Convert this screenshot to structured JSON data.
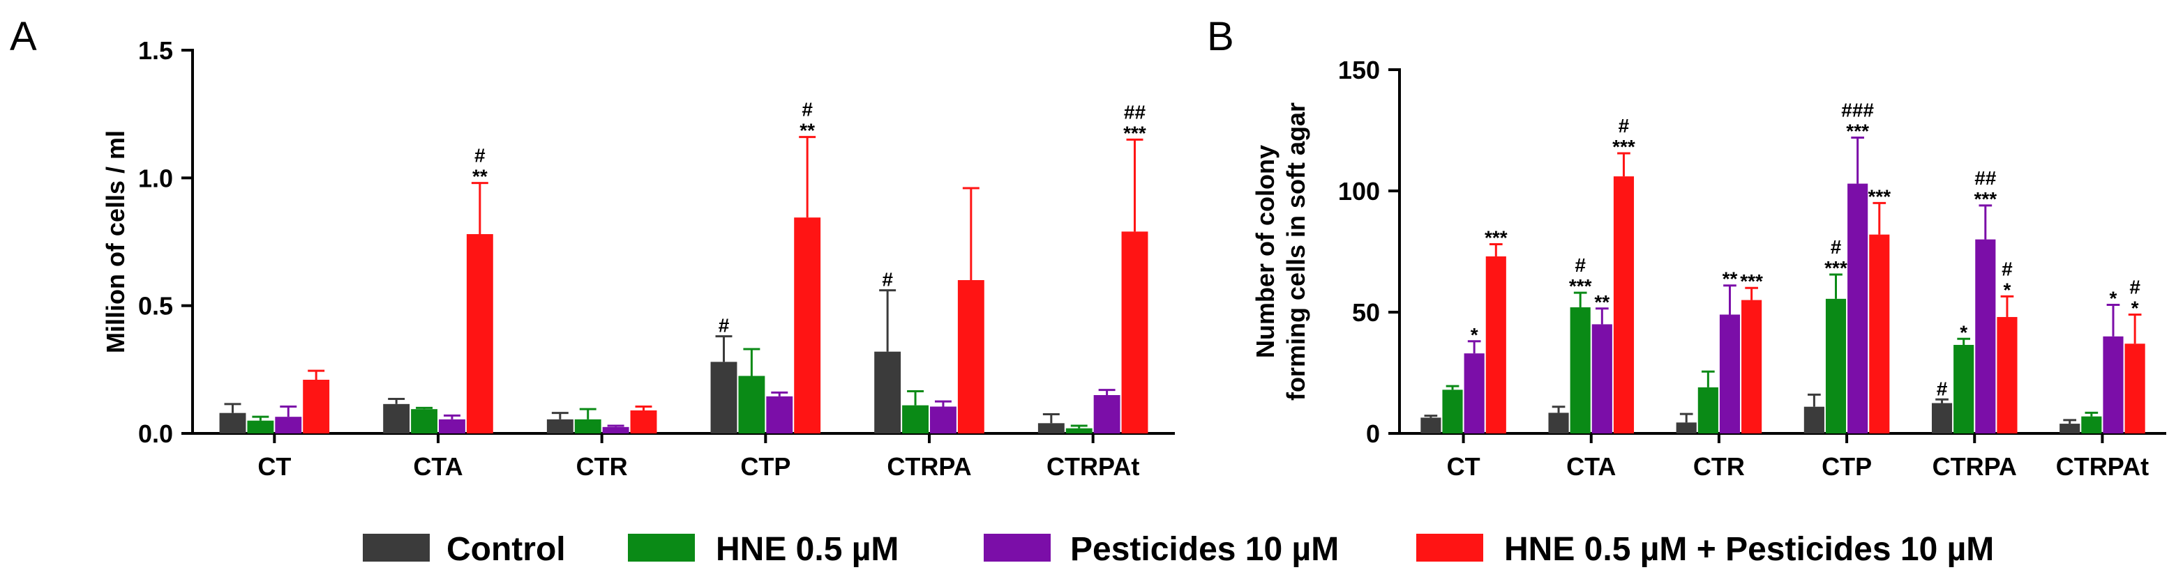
{
  "colors": {
    "Control": "#3b3b3b",
    "HNE 0.5 µM": "#0a8a16",
    "Pesticides 10 µM": "#7b0ea8",
    "HNE 0.5 µM + Pesticides 10 µM": "#ff1414"
  },
  "legend": {
    "items": [
      {
        "label": "Control",
        "color": "#3b3b3b"
      },
      {
        "label": "HNE 0.5 µM",
        "color": "#0a8a16"
      },
      {
        "label": "Pesticides 10 µM",
        "color": "#7b0ea8"
      },
      {
        "label": "HNE 0.5 µM + Pesticides 10 µM",
        "color": "#ff1414"
      }
    ]
  },
  "chart_data": [
    {
      "panel": "A",
      "type": "bar",
      "ylabel": "Million of cells / ml",
      "xlabel": "",
      "ylim": [
        0,
        1.5
      ],
      "yticks": [
        "0.0",
        "0.5",
        "1.0",
        "1.5"
      ],
      "categories": [
        "CT",
        "CTA",
        "CTR",
        "CTP",
        "CTRPA",
        "CTRPAt"
      ],
      "series": [
        {
          "name": "Control",
          "values": [
            0.08,
            0.115,
            0.055,
            0.28,
            0.32,
            0.04
          ],
          "errors": [
            0.035,
            0.02,
            0.025,
            0.1,
            0.24,
            0.035
          ],
          "annotations": [
            [
              "",
              ""
            ],
            [
              "",
              ""
            ],
            [
              "",
              ""
            ],
            [
              "#",
              ""
            ],
            [
              "#",
              ""
            ],
            [
              "",
              ""
            ]
          ]
        },
        {
          "name": "HNE 0.5 µM",
          "values": [
            0.05,
            0.095,
            0.055,
            0.225,
            0.11,
            0.02
          ],
          "errors": [
            0.015,
            0.005,
            0.04,
            0.105,
            0.055,
            0.01
          ],
          "annotations": [
            [
              "",
              ""
            ],
            [
              "",
              ""
            ],
            [
              "",
              ""
            ],
            [
              "",
              ""
            ],
            [
              "",
              ""
            ],
            [
              "",
              ""
            ]
          ]
        },
        {
          "name": "Pesticides 10 µM",
          "values": [
            0.065,
            0.055,
            0.025,
            0.145,
            0.105,
            0.15
          ],
          "errors": [
            0.04,
            0.015,
            0.005,
            0.015,
            0.02,
            0.02
          ],
          "annotations": [
            [
              "",
              ""
            ],
            [
              "",
              ""
            ],
            [
              "",
              ""
            ],
            [
              "",
              ""
            ],
            [
              "",
              ""
            ],
            [
              "",
              ""
            ]
          ]
        },
        {
          "name": "HNE 0.5 µM + Pesticides 10 µM",
          "values": [
            0.21,
            0.78,
            0.09,
            0.845,
            0.6,
            0.79
          ],
          "errors": [
            0.035,
            0.2,
            0.015,
            0.315,
            0.36,
            0.36
          ],
          "annotations": [
            [
              "",
              ""
            ],
            [
              "#",
              "**"
            ],
            [
              "",
              ""
            ],
            [
              "#",
              "**"
            ],
            [
              "",
              ""
            ],
            [
              "##",
              "***"
            ]
          ]
        }
      ]
    },
    {
      "panel": "B",
      "type": "bar",
      "ylabel": "Number of colony\nforming cells in soft agar",
      "ylabel_lines": [
        "Number of colony",
        "forming cells in soft agar"
      ],
      "xlabel": "",
      "ylim": [
        0,
        150
      ],
      "yticks": [
        "0",
        "50",
        "100",
        "150"
      ],
      "categories": [
        "CT",
        "CTA",
        "CTR",
        "CTP",
        "CTRPA",
        "CTRPAt"
      ],
      "series": [
        {
          "name": "Control",
          "values": [
            6.5,
            8.5,
            4.5,
            11,
            12.5,
            4
          ],
          "errors": [
            0.8,
            2.5,
            3.5,
            5,
            1.5,
            1.5
          ],
          "annotations": [
            [
              "",
              ""
            ],
            [
              "",
              ""
            ],
            [
              "",
              ""
            ],
            [
              "",
              ""
            ],
            [
              "#",
              ""
            ],
            [
              "",
              ""
            ]
          ]
        },
        {
          "name": "HNE 0.5 µM",
          "values": [
            18,
            52,
            19,
            55.5,
            36.5,
            7
          ],
          "errors": [
            1.5,
            6,
            6.5,
            10,
            2.5,
            1.5
          ],
          "annotations": [
            [
              "",
              ""
            ],
            [
              "#",
              "***"
            ],
            [
              "",
              ""
            ],
            [
              "#",
              "***"
            ],
            [
              "",
              "*"
            ],
            [
              "",
              ""
            ]
          ]
        },
        {
          "name": "Pesticides 10 µM",
          "values": [
            33,
            45,
            49,
            103,
            80,
            40
          ],
          "errors": [
            5,
            6.5,
            12,
            19,
            14,
            13
          ],
          "annotations": [
            [
              "",
              "*"
            ],
            [
              "",
              "**"
            ],
            [
              "",
              "**"
            ],
            [
              "###",
              "***"
            ],
            [
              "##",
              "***"
            ],
            [
              "",
              "*"
            ]
          ]
        },
        {
          "name": "HNE 0.5 µM + Pesticides 10 µM",
          "values": [
            73,
            106,
            55,
            82,
            48,
            37
          ],
          "errors": [
            5,
            9.5,
            5,
            13,
            8.5,
            12
          ],
          "annotations": [
            [
              "",
              "***"
            ],
            [
              "#",
              "***"
            ],
            [
              "",
              "***"
            ],
            [
              "",
              "***"
            ],
            [
              "#",
              "*"
            ],
            [
              "#",
              "*"
            ]
          ]
        }
      ]
    }
  ],
  "panels": {
    "A": {
      "letter": "A"
    },
    "B": {
      "letter": "B"
    }
  }
}
